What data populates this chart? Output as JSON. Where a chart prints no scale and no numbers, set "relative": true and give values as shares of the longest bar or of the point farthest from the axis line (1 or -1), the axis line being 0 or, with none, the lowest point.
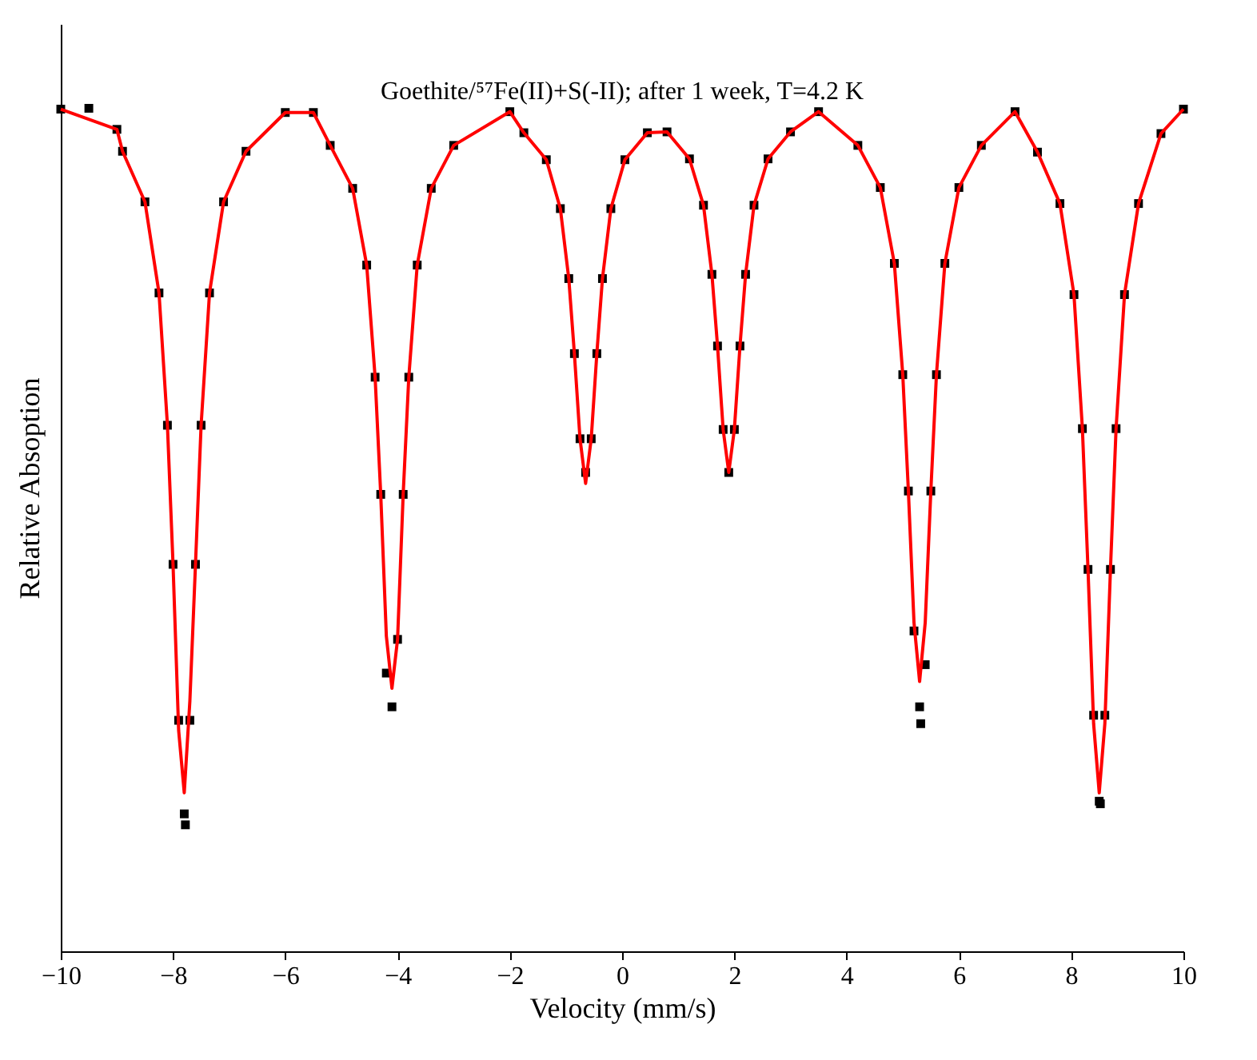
{
  "chart_data": {
    "type": "scatter",
    "title": "Goethite/⁵⁷Fe(II)+S(-II); after 1 week, T=4.2 K",
    "xlabel": "Velocity (mm/s)",
    "ylabel": "Relative Absoption",
    "relative": true,
    "xlim": [
      -10,
      10
    ],
    "xticks": [
      -10,
      -8,
      -6,
      -4,
      -2,
      0,
      2,
      4,
      6,
      8,
      10
    ],
    "grid": false,
    "series": [
      {
        "type": "scatter",
        "marker": "square",
        "color": "#000000",
        "x": [
          -10,
          -9.5,
          -9,
          -8.9,
          -8.5,
          -8.25,
          -8.1,
          -8.0,
          -7.9,
          -7.8,
          -7.78,
          -7.7,
          -7.6,
          -7.5,
          -7.35,
          -7.1,
          -6.7,
          -6,
          -5.5,
          -5.2,
          -4.8,
          -4.55,
          -4.4,
          -4.3,
          -4.2,
          -4.1,
          -4.0,
          -3.9,
          -3.8,
          -3.65,
          -3.4,
          -3.0,
          -2,
          -1.75,
          -1.35,
          -1.1,
          -0.95,
          -0.85,
          -0.75,
          -0.65,
          -0.55,
          -0.45,
          -0.35,
          -0.2,
          0.05,
          0.45,
          0.8,
          1.2,
          1.45,
          1.6,
          1.7,
          1.8,
          1.9,
          2.0,
          2.1,
          2.2,
          2.35,
          2.6,
          3.0,
          3.5,
          4.2,
          4.6,
          4.85,
          5.0,
          5.1,
          5.2,
          5.3,
          5.32,
          5.4,
          5.5,
          5.6,
          5.75,
          6.0,
          6.4,
          7.0,
          7.4,
          7.8,
          8.05,
          8.2,
          8.3,
          8.4,
          8.5,
          8.52,
          8.6,
          8.7,
          8.8,
          8.95,
          9.2,
          9.6,
          10
        ],
        "values": [
          0.999,
          1.0,
          0.975,
          0.949,
          0.889,
          0.781,
          0.624,
          0.459,
          0.274,
          0.163,
          0.15,
          0.274,
          0.459,
          0.624,
          0.781,
          0.889,
          0.949,
          0.995,
          0.995,
          0.956,
          0.905,
          0.814,
          0.681,
          0.542,
          0.33,
          0.29,
          0.37,
          0.542,
          0.681,
          0.814,
          0.905,
          0.956,
          0.996,
          0.971,
          0.939,
          0.881,
          0.798,
          0.709,
          0.608,
          0.568,
          0.608,
          0.709,
          0.798,
          0.881,
          0.939,
          0.971,
          0.972,
          0.94,
          0.885,
          0.803,
          0.718,
          0.619,
          0.568,
          0.619,
          0.718,
          0.803,
          0.885,
          0.94,
          0.972,
          0.996,
          0.956,
          0.906,
          0.816,
          0.684,
          0.546,
          0.38,
          0.29,
          0.27,
          0.34,
          0.546,
          0.684,
          0.816,
          0.906,
          0.956,
          0.996,
          0.948,
          0.887,
          0.779,
          0.62,
          0.453,
          0.28,
          0.178,
          0.175,
          0.28,
          0.453,
          0.62,
          0.779,
          0.887,
          0.97,
          0.999
        ]
      },
      {
        "type": "line",
        "color": "#ff0000",
        "x": [
          -10,
          -9,
          -8.9,
          -8.5,
          -8.25,
          -8.1,
          -8.0,
          -7.9,
          -7.8,
          -7.7,
          -7.6,
          -7.5,
          -7.35,
          -7.1,
          -6.7,
          -6,
          -5.5,
          -5.2,
          -4.8,
          -4.55,
          -4.4,
          -4.3,
          -4.2,
          -4.1,
          -4.0,
          -3.9,
          -3.8,
          -3.65,
          -3.4,
          -3.0,
          -2,
          -1.75,
          -1.35,
          -1.1,
          -0.95,
          -0.85,
          -0.75,
          -0.65,
          -0.55,
          -0.45,
          -0.35,
          -0.2,
          0.05,
          0.45,
          0.8,
          1.2,
          1.45,
          1.6,
          1.7,
          1.8,
          1.9,
          2.0,
          2.1,
          2.2,
          2.35,
          2.6,
          3.0,
          3.5,
          4.2,
          4.6,
          4.85,
          5.0,
          5.1,
          5.2,
          5.3,
          5.4,
          5.5,
          5.6,
          5.75,
          6.0,
          6.4,
          7.0,
          7.4,
          7.8,
          8.05,
          8.2,
          8.3,
          8.4,
          8.5,
          8.6,
          8.7,
          8.8,
          8.95,
          9.2,
          9.6,
          10
        ],
        "values": [
          0.999,
          0.975,
          0.949,
          0.889,
          0.781,
          0.624,
          0.459,
          0.262,
          0.188,
          0.297,
          0.459,
          0.624,
          0.781,
          0.889,
          0.949,
          0.995,
          0.995,
          0.956,
          0.905,
          0.814,
          0.681,
          0.542,
          0.374,
          0.312,
          0.37,
          0.542,
          0.681,
          0.814,
          0.905,
          0.956,
          0.996,
          0.971,
          0.939,
          0.881,
          0.798,
          0.709,
          0.608,
          0.555,
          0.608,
          0.709,
          0.798,
          0.881,
          0.939,
          0.971,
          0.972,
          0.94,
          0.885,
          0.803,
          0.718,
          0.619,
          0.568,
          0.619,
          0.718,
          0.803,
          0.885,
          0.94,
          0.972,
          0.996,
          0.956,
          0.906,
          0.816,
          0.684,
          0.546,
          0.39,
          0.32,
          0.39,
          0.546,
          0.684,
          0.816,
          0.906,
          0.956,
          0.996,
          0.948,
          0.887,
          0.779,
          0.62,
          0.453,
          0.27,
          0.188,
          0.27,
          0.453,
          0.62,
          0.779,
          0.887,
          0.97,
          0.999
        ]
      }
    ]
  }
}
